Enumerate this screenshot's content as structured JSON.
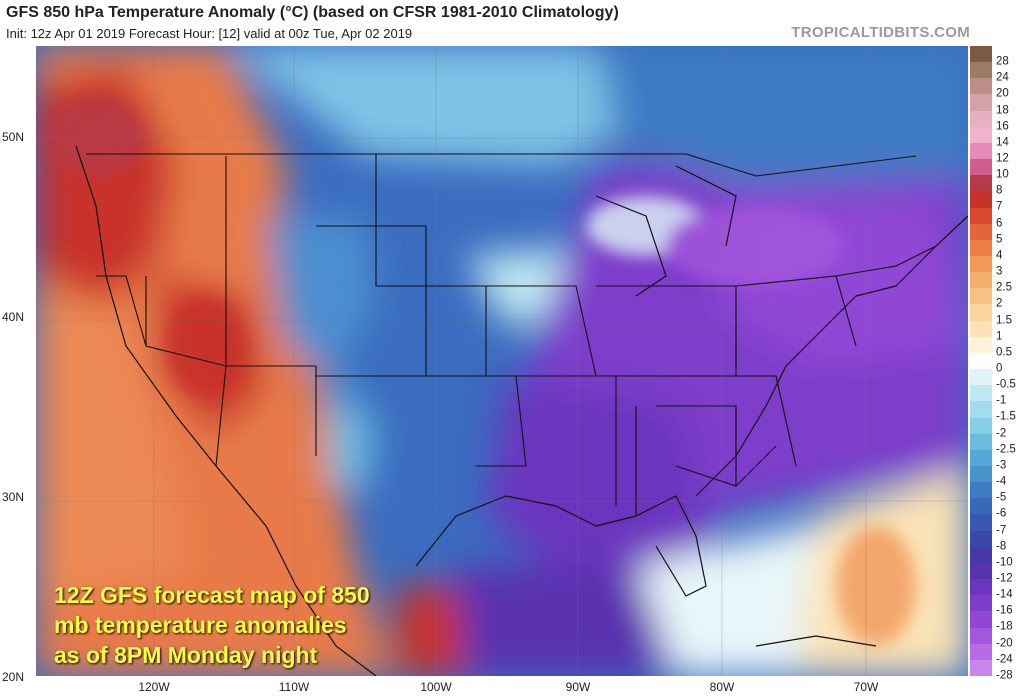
{
  "header": {
    "title": "GFS 850 hPa Temperature Anomaly (°C) (based on CFSR 1981-2010 Climatology)",
    "subtitle": "Init: 12z Apr 01 2019   Forecast Hour: [12]   valid at 00z Tue, Apr 02 2019",
    "site": "TROPICALTIDBITS.COM"
  },
  "map": {
    "lat_labels": [
      "50N",
      "40N",
      "30N",
      "20N"
    ],
    "lon_labels": [
      "120W",
      "110W",
      "100W",
      "90W",
      "80W",
      "70W"
    ]
  },
  "colorbar": {
    "levels": [
      "28",
      "24",
      "20",
      "18",
      "16",
      "14",
      "12",
      "10",
      "8",
      "7",
      "6",
      "5",
      "4",
      "3",
      "2.5",
      "2",
      "1.5",
      "1",
      "0.5",
      "0",
      "-0.5",
      "-1",
      "-1.5",
      "-2",
      "-2.5",
      "-3",
      "-4",
      "-5",
      "-6",
      "-7",
      "-8",
      "-10",
      "-12",
      "-14",
      "-16",
      "-18",
      "-20",
      "-24",
      "-28"
    ],
    "colors": [
      "#7a5a40",
      "#9c7b66",
      "#b98f86",
      "#d4a2a6",
      "#e6b0c0",
      "#f0b3cc",
      "#e88ab8",
      "#cf5d8e",
      "#b73a4a",
      "#c8322a",
      "#d84a2e",
      "#e4653a",
      "#ec7f46",
      "#f2995a",
      "#f5ad6e",
      "#f7c184",
      "#f9d49c",
      "#fbe3b6",
      "#fdf1d8",
      "#ffffff",
      "#dff5f8",
      "#bfe9f2",
      "#a3dcec",
      "#86cde6",
      "#6bbde0",
      "#55a9d8",
      "#4893ce",
      "#3d7cc4",
      "#3768bb",
      "#3757b3",
      "#3a47ab",
      "#4638a6",
      "#5a32b0",
      "#6c35bf",
      "#7e3ccb",
      "#9047d6",
      "#a457de",
      "#b76ce5",
      "#c885ec"
    ]
  },
  "caption": {
    "lines": [
      "12Z GFS forecast map of 850",
      "mb temperature anomalies",
      "as of 8PM Monday night"
    ]
  }
}
